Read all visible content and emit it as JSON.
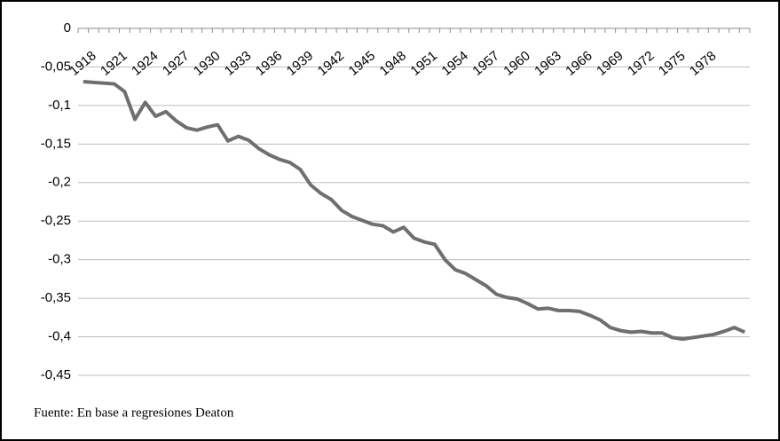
{
  "chart_data": {
    "type": "line",
    "categories": [
      "1918",
      null,
      null,
      "1921",
      null,
      null,
      "1924",
      null,
      null,
      "1927",
      null,
      null,
      "1930",
      null,
      null,
      "1933",
      null,
      null,
      "1936",
      null,
      null,
      "1939",
      null,
      null,
      "1942",
      null,
      null,
      "1945",
      null,
      null,
      "1948",
      null,
      null,
      "1951",
      null,
      null,
      "1954",
      null,
      null,
      "1957",
      null,
      null,
      "1960",
      null,
      null,
      "1963",
      null,
      null,
      "1966",
      null,
      null,
      "1969",
      null,
      null,
      "1972",
      null,
      null,
      "1975",
      null,
      null,
      "1978",
      null,
      null,
      null,
      null
    ],
    "values": [
      -0.069,
      -0.07,
      -0.071,
      -0.072,
      -0.082,
      -0.118,
      -0.096,
      -0.114,
      -0.108,
      -0.12,
      -0.129,
      -0.132,
      -0.128,
      -0.125,
      -0.146,
      -0.14,
      -0.145,
      -0.156,
      -0.164,
      -0.17,
      -0.174,
      -0.183,
      -0.203,
      -0.214,
      -0.222,
      -0.236,
      -0.244,
      -0.249,
      -0.254,
      -0.256,
      -0.264,
      -0.258,
      -0.272,
      -0.277,
      -0.28,
      -0.3,
      -0.313,
      -0.318,
      -0.326,
      -0.334,
      -0.345,
      -0.349,
      -0.351,
      -0.357,
      -0.364,
      -0.363,
      -0.366,
      -0.366,
      -0.367,
      -0.372,
      -0.378,
      -0.388,
      -0.392,
      -0.394,
      -0.393,
      -0.395,
      -0.395,
      -0.401,
      -0.403,
      -0.401,
      -0.399,
      -0.397,
      -0.393,
      -0.388,
      -0.394
    ],
    "color": "#6f6f6f",
    "ylim": [
      -0.45,
      0
    ],
    "yticks": [
      0,
      {
        "value": -0.05,
        "label": "-0,05"
      },
      {
        "value": -0.1,
        "label": "-0,1"
      },
      {
        "value": -0.15,
        "label": "-0,15"
      },
      {
        "value": -0.2,
        "label": "-0,2"
      },
      {
        "value": -0.25,
        "label": "-0,25"
      },
      {
        "value": -0.3,
        "label": "-0,3"
      },
      {
        "value": -0.35,
        "label": "-0,35"
      },
      {
        "value": -0.4,
        "label": "-0,4"
      },
      {
        "value": -0.45,
        "label": "-0,45"
      }
    ],
    "grid": true,
    "source": "Fuente: En base a regresiones Deaton"
  }
}
